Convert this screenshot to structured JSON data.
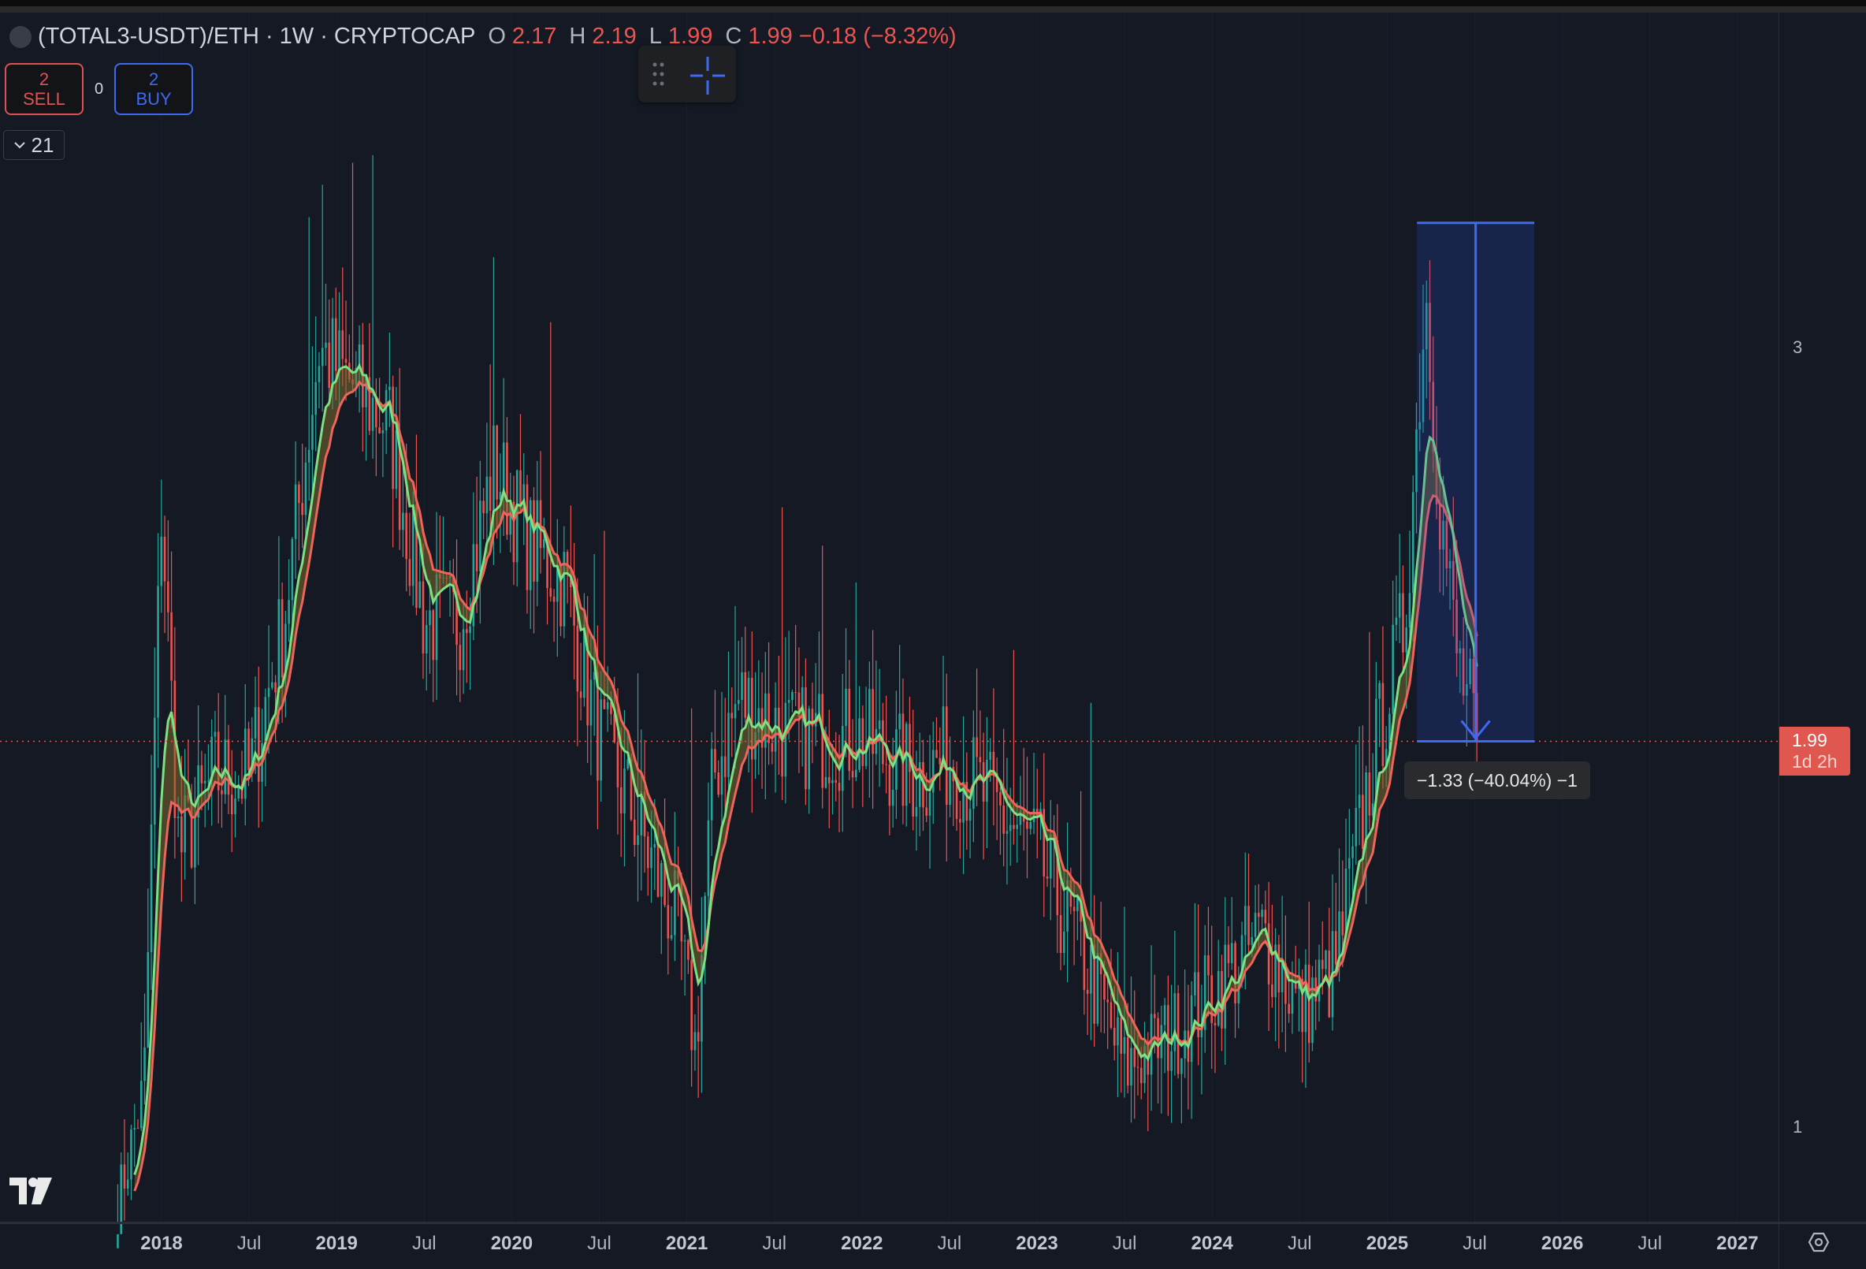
{
  "header": {
    "symbol_title": "(TOTAL3-USDT)/ETH · 1W · CRYPTOCAP",
    "ohlc": [
      {
        "key": "O",
        "value": "2.17"
      },
      {
        "key": "H",
        "value": "2.19"
      },
      {
        "key": "L",
        "value": "1.99"
      },
      {
        "key": "C",
        "value": "1.99"
      }
    ],
    "change": "−0.18 (−8.32%)"
  },
  "trade": {
    "sell_count": "2",
    "sell_label": "SELL",
    "spread": "0",
    "buy_count": "2",
    "buy_label": "BUY"
  },
  "indicators": {
    "count": "21",
    "icon": "chevron-down-icon"
  },
  "price_tag": {
    "value": "1.99",
    "countdown": "1d 2h"
  },
  "measure_label": "−1.33 (−40.04%) −1",
  "colors": {
    "background": "#151924",
    "up": "#26a69a",
    "down": "#ef5350",
    "ma_fast": "#7ee081",
    "ma_slow": "#f0645a",
    "measure": "#3d6af0"
  },
  "chart_data": {
    "type": "candlestick",
    "interval": "1W",
    "y_scale": "linear",
    "y_ticks": [
      "3",
      "1"
    ],
    "ylim": [
      0.8,
      3.55
    ],
    "x_ticks": [
      {
        "label": "2018",
        "t": 2018.0,
        "major": true
      },
      {
        "label": "Jul",
        "t": 2018.5,
        "major": false
      },
      {
        "label": "2019",
        "t": 2019.0,
        "major": true
      },
      {
        "label": "Jul",
        "t": 2019.5,
        "major": false
      },
      {
        "label": "2020",
        "t": 2020.0,
        "major": true
      },
      {
        "label": "Jul",
        "t": 2020.5,
        "major": false
      },
      {
        "label": "2021",
        "t": 2021.0,
        "major": true
      },
      {
        "label": "Jul",
        "t": 2021.5,
        "major": false
      },
      {
        "label": "2022",
        "t": 2022.0,
        "major": true
      },
      {
        "label": "Jul",
        "t": 2022.5,
        "major": false
      },
      {
        "label": "2023",
        "t": 2023.0,
        "major": true
      },
      {
        "label": "Jul",
        "t": 2023.5,
        "major": false
      },
      {
        "label": "2024",
        "t": 2024.0,
        "major": true
      },
      {
        "label": "Jul",
        "t": 2024.5,
        "major": false
      },
      {
        "label": "2025",
        "t": 2025.0,
        "major": true
      },
      {
        "label": "Jul",
        "t": 2025.5,
        "major": false
      },
      {
        "label": "2026",
        "t": 2026.0,
        "major": true
      },
      {
        "label": "Jul",
        "t": 2026.5,
        "major": false
      },
      {
        "label": "2027",
        "t": 2027.0,
        "major": true
      }
    ],
    "close_path": [
      [
        2017.75,
        0.8
      ],
      [
        2017.9,
        1.1
      ],
      [
        2018.0,
        2.6
      ],
      [
        2018.1,
        1.7
      ],
      [
        2018.3,
        1.9
      ],
      [
        2018.5,
        1.9
      ],
      [
        2018.7,
        2.3
      ],
      [
        2018.9,
        3.0
      ],
      [
        2019.1,
        2.9
      ],
      [
        2019.3,
        2.8
      ],
      [
        2019.5,
        2.3
      ],
      [
        2019.7,
        2.3
      ],
      [
        2019.9,
        2.7
      ],
      [
        2020.1,
        2.5
      ],
      [
        2020.3,
        2.4
      ],
      [
        2020.5,
        2.0
      ],
      [
        2020.7,
        1.8
      ],
      [
        2020.95,
        1.5
      ],
      [
        2021.05,
        1.2
      ],
      [
        2021.15,
        1.9
      ],
      [
        2021.3,
        2.1
      ],
      [
        2021.6,
        2.0
      ],
      [
        2022.0,
        2.0
      ],
      [
        2022.3,
        1.9
      ],
      [
        2022.5,
        1.95
      ],
      [
        2022.8,
        1.8
      ],
      [
        2023.0,
        1.7
      ],
      [
        2023.3,
        1.4
      ],
      [
        2023.5,
        1.15
      ],
      [
        2023.8,
        1.25
      ],
      [
        2024.1,
        1.4
      ],
      [
        2024.3,
        1.5
      ],
      [
        2024.5,
        1.3
      ],
      [
        2024.7,
        1.4
      ],
      [
        2024.9,
        1.9
      ],
      [
        2025.1,
        2.3
      ],
      [
        2025.22,
        3.15
      ],
      [
        2025.3,
        2.6
      ],
      [
        2025.4,
        2.2
      ],
      [
        2025.52,
        1.99
      ]
    ],
    "last_price": 1.99,
    "measure": {
      "from_t": 2025.17,
      "to_t": 2025.84,
      "from_value": 3.32,
      "to_value": 1.99
    }
  }
}
